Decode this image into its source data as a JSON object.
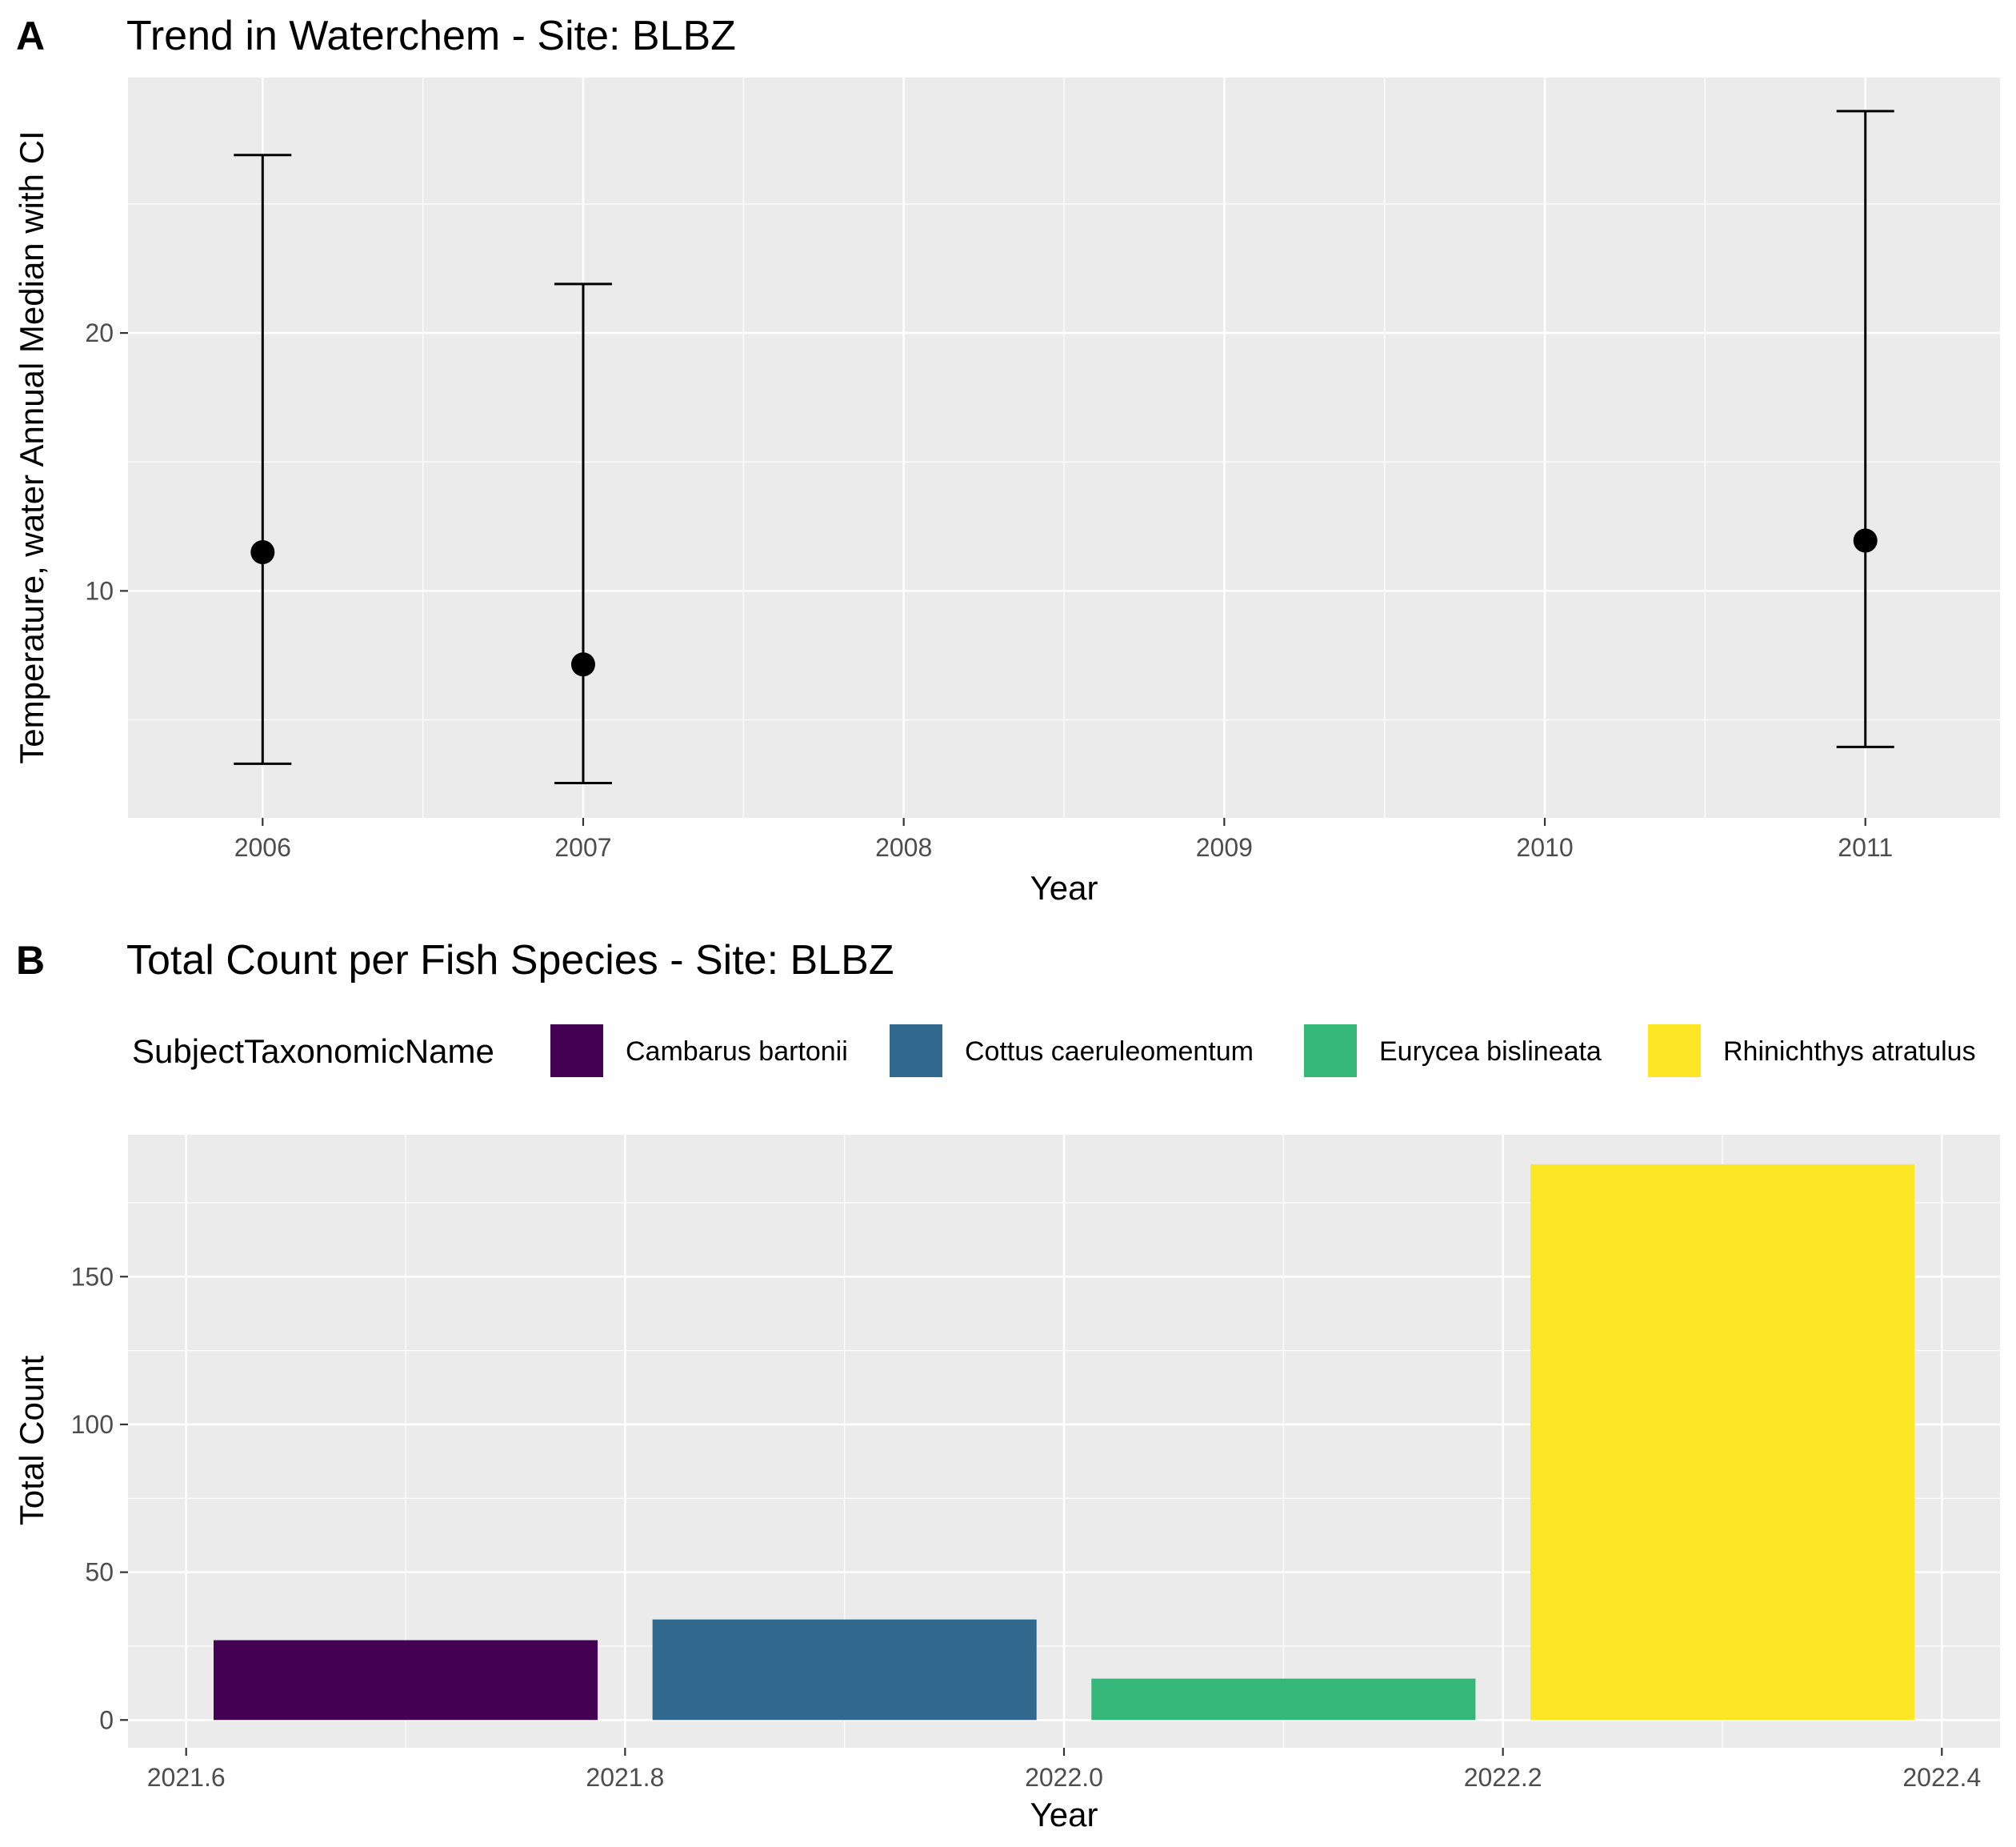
{
  "chart_data": [
    {
      "tag": "A",
      "type": "scatter",
      "title": "Trend in Waterchem - Site: BLBZ",
      "xlabel": "Year",
      "ylabel": "Temperature, water Annual Median with CI",
      "categories": [
        "2006",
        "2007",
        "2008",
        "2009",
        "2010",
        "2011"
      ],
      "xlim": [
        2005.58,
        2011.42
      ],
      "ylim": [
        1.2,
        29.9
      ],
      "yticks": [
        10,
        20
      ],
      "grid": true,
      "points": [
        {
          "x": 2006,
          "y": 11.5,
          "lower": 3.3,
          "upper": 26.9
        },
        {
          "x": 2007,
          "y": 7.15,
          "lower": 2.55,
          "upper": 21.9
        },
        {
          "x": 2011,
          "y": 11.95,
          "lower": 3.95,
          "upper": 28.6
        }
      ]
    },
    {
      "tag": "B",
      "type": "bar",
      "title": "Total Count per Fish Species - Site: BLBZ",
      "xlabel": "Year",
      "ylabel": "Total Count",
      "legend_title": "SubjectTaxonomicName",
      "legend_position": "top",
      "xlim": [
        2021.5735,
        2022.4265
      ],
      "xticks": [
        "2021.6",
        "2021.8",
        "2022.0",
        "2022.2",
        "2022.4"
      ],
      "ylim": [
        -9.4,
        198
      ],
      "yticks": [
        0,
        50,
        100,
        150
      ],
      "grid": true,
      "series": [
        {
          "name": "Cambarus bartonii",
          "x_start": 2021.6125,
          "x_end": 2021.7875,
          "value": 27,
          "color": "#440154"
        },
        {
          "name": "Cottus caeruleomentum",
          "x_start": 2021.8125,
          "x_end": 2021.9875,
          "value": 34,
          "color": "#31688E"
        },
        {
          "name": "Eurycea bislineata",
          "x_start": 2022.0125,
          "x_end": 2022.1875,
          "value": 14,
          "color": "#35B779"
        },
        {
          "name": "Rhinichthys atratulus",
          "x_start": 2022.2125,
          "x_end": 2022.3875,
          "value": 188,
          "color": "#FDE725"
        }
      ]
    }
  ]
}
